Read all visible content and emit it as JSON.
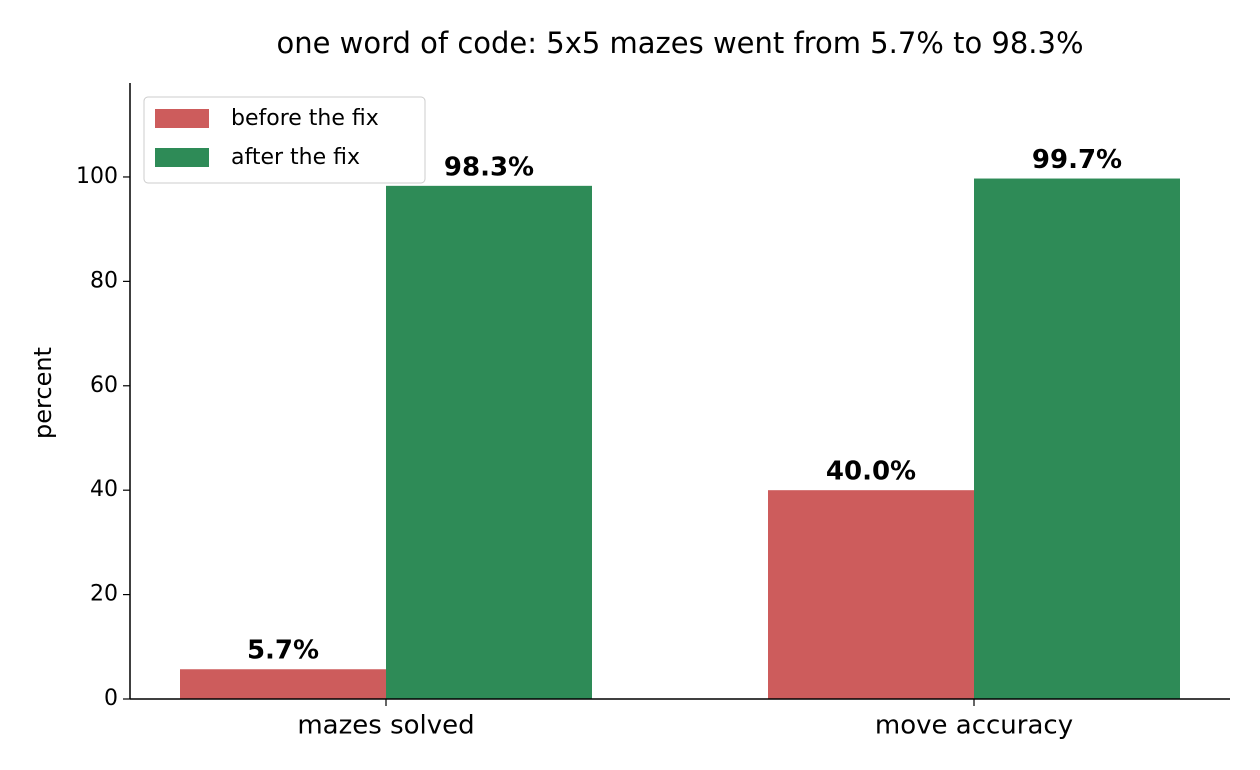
{
  "chart_data": {
    "type": "bar",
    "title": "one word of code: 5x5 mazes went from 5.7% to 98.3%",
    "y_label": "percent",
    "categories": [
      "mazes solved",
      "move accuracy"
    ],
    "series": [
      {
        "name": "before the fix",
        "color": "#cd5c5c",
        "values": [
          5.7,
          40.0
        ],
        "value_labels": [
          "5.7%",
          "40.0%"
        ]
      },
      {
        "name": "after the fix",
        "color": "#2e8b57",
        "values": [
          98.3,
          99.7
        ],
        "value_labels": [
          "98.3%",
          "99.7%"
        ]
      }
    ],
    "ylim": [
      0,
      118
    ],
    "yticks": [
      0,
      20,
      40,
      60,
      80,
      100
    ],
    "legend": "upper left",
    "grid": false
  }
}
